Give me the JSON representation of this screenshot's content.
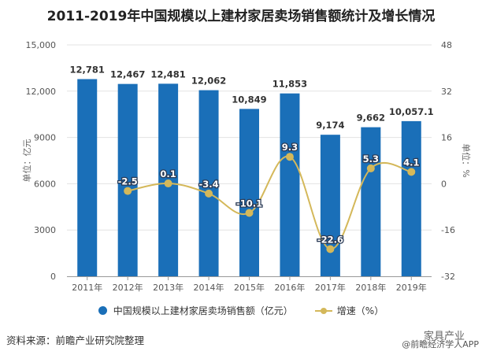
{
  "chart_data": {
    "type": "bar+line",
    "title": "2011-2019年中国规模以上建材家居卖场销售额统计及增长情况",
    "categories": [
      "2011年",
      "2012年",
      "2013年",
      "2014年",
      "2015年",
      "2016年",
      "2017年",
      "2018年",
      "2019年"
    ],
    "series": [
      {
        "name": "中国规模以上建材家居卖场销售额（亿元）",
        "type": "bar",
        "axis": "left",
        "values": [
          12781,
          12467,
          12481,
          12062,
          10849,
          11853,
          9174,
          9662,
          10057.1
        ],
        "labels": [
          "12,781",
          "12,467",
          "12,481",
          "12,062",
          "10,849",
          "11,853",
          "9,174",
          "9,662",
          "10,057.1"
        ],
        "color": "#1a6fb8"
      },
      {
        "name": "增速（%）",
        "type": "line",
        "axis": "right",
        "values": [
          null,
          -2.5,
          0.1,
          -3.4,
          -10.1,
          9.3,
          -22.6,
          5.3,
          4.1
        ],
        "labels": [
          "",
          "-2.5",
          "0.1",
          "-3.4",
          "-10.1",
          "9.3",
          "-22.6",
          "5.3",
          "4.1"
        ],
        "color": "#d4b85a"
      }
    ],
    "ylabel_left": "单位：亿元",
    "ylabel_right": "单位：%",
    "ylim_left": [
      0,
      15000
    ],
    "yticks_left": [
      "0",
      "3000",
      "6000",
      "9000",
      "12,000",
      "15,000"
    ],
    "ylim_right": [
      -32,
      48
    ],
    "yticks_right": [
      "-32",
      "-16",
      "0",
      "16",
      "32",
      "48"
    ],
    "grid": true,
    "legend": "bottom"
  },
  "footer": {
    "source": "资料来源：前瞻产业研究院整理",
    "watermark_top": "家具产业",
    "watermark_bottom": "@前瞻经济学人APP"
  }
}
